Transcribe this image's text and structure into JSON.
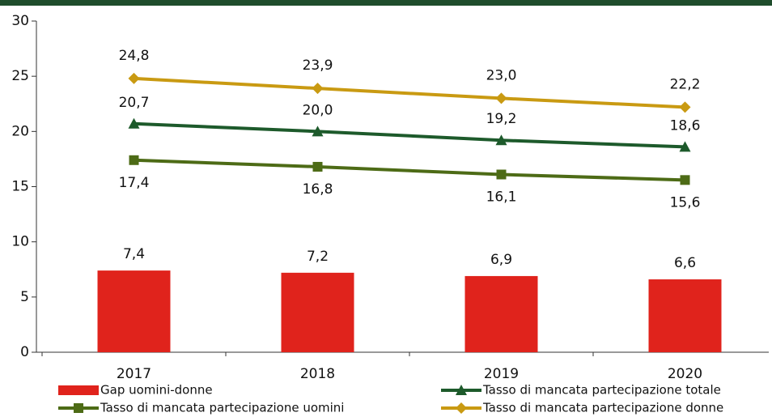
{
  "chart_data": {
    "type": "combo",
    "categories": [
      "2017",
      "2018",
      "2019",
      "2020"
    ],
    "ylim": [
      0,
      30
    ],
    "yticks": [
      0,
      5,
      10,
      15,
      20,
      25,
      30
    ],
    "grid": false,
    "legend": "bottom",
    "series": [
      {
        "name": "Gap uomini-donne",
        "type": "bar",
        "color": "#e0231c",
        "values": [
          7.4,
          7.2,
          6.9,
          6.6
        ],
        "value_labels": [
          "7,4",
          "7,2",
          "6,9",
          "6,6"
        ]
      },
      {
        "name": "Tasso di mancata partecipazione totale",
        "type": "line",
        "marker": "triangle",
        "color": "#1d5a2b",
        "values": [
          20.7,
          20.0,
          19.2,
          18.6
        ],
        "value_labels": [
          "20,7",
          "20,0",
          "19,2",
          "18,6"
        ]
      },
      {
        "name": "Tasso di mancata partecipazione uomini",
        "type": "line",
        "marker": "square",
        "color": "#4d6b16",
        "values": [
          17.4,
          16.8,
          16.1,
          15.6
        ],
        "value_labels": [
          "17,4",
          "16,8",
          "16,1",
          "15,6"
        ]
      },
      {
        "name": "Tasso di mancata partecipazione donne",
        "type": "line",
        "marker": "diamond",
        "color": "#c99a12",
        "values": [
          24.8,
          23.9,
          23.0,
          22.2
        ],
        "value_labels": [
          "24,8",
          "23,9",
          "23,0",
          "22,2"
        ]
      }
    ]
  }
}
